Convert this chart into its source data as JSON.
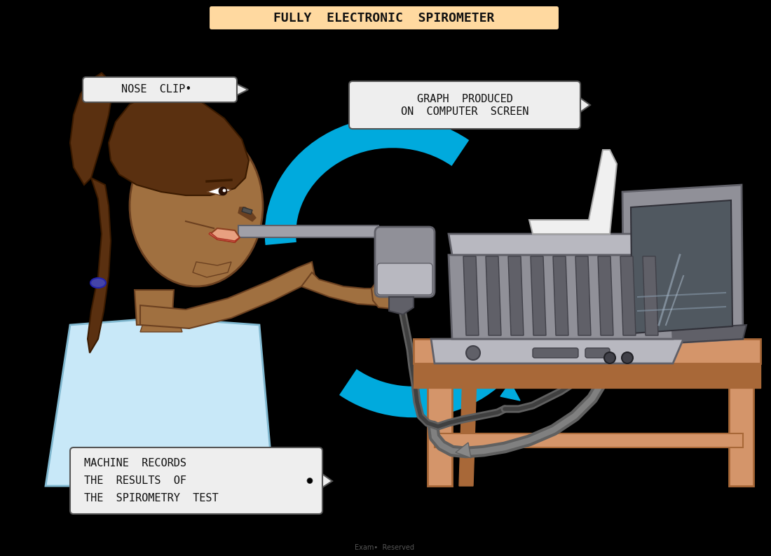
{
  "background_color": "#000000",
  "title_text": "FULLY  ELECTRONIC  SPIROMETER",
  "title_bg": "#FFD9A0",
  "title_border": "#000000",
  "label_nose_clip": "NOSE  CLIP•",
  "label_graph_line1": "GRAPH  PRODUCED",
  "label_graph_line2": "ON  COMPUTER  SCREEN",
  "label_machine_line1": "MACHINE  RECORDS",
  "label_machine_line2": "THE  RESULTS  OF",
  "label_machine_line3": "THE  SPIROMETRY  TEST",
  "label_bg": "#EEEEEE",
  "label_border": "#555555",
  "arrow_color": "#00AADD",
  "skin_color": "#A07040",
  "skin_mid": "#8B6030",
  "skin_dark": "#6B4020",
  "hair_color": "#5A3010",
  "hair_dark": "#3A1A00",
  "shirt_color": "#C8E8F8",
  "shirt_outline": "#80B8D0",
  "device_gray": "#909098",
  "device_light": "#B8B8C0",
  "device_dark": "#606068",
  "device_darker": "#404048",
  "table_color": "#D4956A",
  "table_dark": "#A86838",
  "cable_color": "#606060",
  "cable_dark": "#404040",
  "screen_dark": "#505860",
  "screen_mid": "#686870",
  "paper_color": "#F0F0F0",
  "hair_tie_color": "#4444AA"
}
